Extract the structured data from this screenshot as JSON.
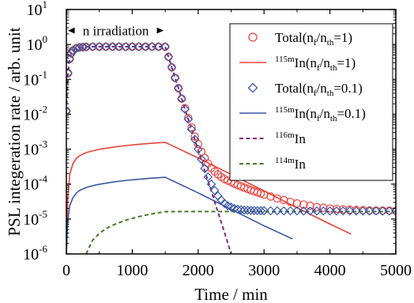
{
  "chart_data": {
    "type": "line",
    "xlabel": "Time / min",
    "ylabel": "PSL integeration rate / arb. unit",
    "xlim": [
      0,
      5000
    ],
    "ylim": [
      1e-06,
      10
    ],
    "yscale": "log",
    "grid": false,
    "legend_position": "top-right",
    "x_ticks": [
      {
        "value": 0,
        "label": "0"
      },
      {
        "value": 1000,
        "label": "1000"
      },
      {
        "value": 2000,
        "label": "2000"
      },
      {
        "value": 3000,
        "label": "3000"
      },
      {
        "value": 4000,
        "label": "4000"
      },
      {
        "value": 5000,
        "label": "5000"
      }
    ],
    "y_ticks": [
      {
        "value": 1e-06,
        "base": "10",
        "exp": "-6"
      },
      {
        "value": 1e-05,
        "base": "10",
        "exp": "-5"
      },
      {
        "value": 0.0001,
        "base": "10",
        "exp": "-4"
      },
      {
        "value": 0.001,
        "base": "10",
        "exp": "-3"
      },
      {
        "value": 0.01,
        "base": "10",
        "exp": "-2"
      },
      {
        "value": 0.1,
        "base": "10",
        "exp": "-1"
      },
      {
        "value": 1,
        "base": "10",
        "exp": "0"
      },
      {
        "value": 10,
        "base": "10",
        "exp": "1"
      }
    ],
    "annotation": {
      "text": "n irradiation",
      "x_start": 0,
      "x_end": 1500,
      "y": 2.5
    },
    "series": [
      {
        "name": "Total(n_f/n_th=1)",
        "legend": {
          "pre_sup": "",
          "main": "Total(n",
          "sub1": "f",
          "mid": "/n",
          "sub2": "th",
          "tail": "=1)"
        },
        "style": "marker-circle",
        "color": "#e8413a",
        "x": [
          0,
          25,
          50,
          75,
          100,
          150,
          200,
          250,
          300,
          400,
          500,
          600,
          700,
          800,
          900,
          1000,
          1100,
          1200,
          1300,
          1400,
          1500,
          1550,
          1600,
          1650,
          1700,
          1750,
          1800,
          1850,
          1900,
          1950,
          2000,
          2050,
          2100,
          2150,
          2200,
          2250,
          2300,
          2350,
          2400,
          2450,
          2500,
          2550,
          2600,
          2650,
          2700,
          2750,
          2800,
          2850,
          2900,
          2950,
          3000,
          3100,
          3200,
          3300,
          3400,
          3500,
          3600,
          3700,
          3800,
          3900,
          4000,
          4100,
          4200,
          4300,
          4400,
          4500,
          4600,
          4700,
          4800,
          4900,
          5000
        ],
        "y": [
          0.0125,
          0.15,
          0.38,
          0.56,
          0.67,
          0.78,
          0.82,
          0.84,
          0.85,
          0.86,
          0.86,
          0.86,
          0.86,
          0.86,
          0.86,
          0.86,
          0.86,
          0.86,
          0.86,
          0.86,
          0.86,
          0.44,
          0.22,
          0.11,
          0.056,
          0.028,
          0.015,
          0.0078,
          0.0042,
          0.0023,
          0.0014,
          0.00085,
          0.00056,
          0.00039,
          0.00029,
          0.00023,
          0.00019,
          0.00016,
          0.00014,
          0.000126,
          0.000114,
          0.000103,
          9.4e-05,
          8.6e-05,
          7.9e-05,
          7.3e-05,
          6.7e-05,
          6.2e-05,
          5.8e-05,
          5.4e-05,
          5e-05,
          4.4e-05,
          3.9e-05,
          3.5e-05,
          3.1e-05,
          2.8e-05,
          2.6e-05,
          2.4e-05,
          2.2e-05,
          2.1e-05,
          2e-05,
          1.95e-05,
          1.89e-05,
          1.85e-05,
          1.82e-05,
          1.79e-05,
          1.77e-05,
          1.75e-05,
          1.74e-05,
          1.73e-05,
          1.72e-05
        ]
      },
      {
        "name": "115mIn(n_f/n_th=1)",
        "legend": {
          "pre_sup": "115m",
          "main": "In(n",
          "sub1": "f",
          "mid": "/n",
          "sub2": "th",
          "tail": "=1)"
        },
        "style": "line",
        "color": "#e8413a",
        "x": [
          0,
          20,
          50,
          100,
          150,
          200,
          300,
          400,
          500,
          700,
          900,
          1100,
          1300,
          1500,
          2000,
          2500,
          3000,
          3500,
          4000,
          4320
        ],
        "y": [
          1e-06,
          3.5e-05,
          0.000185,
          0.00039,
          0.00054,
          0.00065,
          0.0008,
          0.0009,
          0.00099,
          0.00114,
          0.00127,
          0.00138,
          0.00148,
          0.00157,
          0.00056,
          0.00019,
          6.4e-05,
          2.1e-05,
          7.2e-06,
          3.7e-06
        ]
      },
      {
        "name": "Total(n_f/n_th=0.1)",
        "legend": {
          "pre_sup": "",
          "main": "Total(n",
          "sub1": "f",
          "mid": "/n",
          "sub2": "th",
          "tail": "=0.1)"
        },
        "style": "marker-diamond",
        "color": "#3a55a4",
        "x": [
          0,
          25,
          50,
          75,
          100,
          150,
          200,
          250,
          300,
          400,
          500,
          600,
          700,
          800,
          900,
          1000,
          1100,
          1200,
          1300,
          1400,
          1500,
          1550,
          1600,
          1650,
          1700,
          1750,
          1800,
          1850,
          1900,
          1950,
          2000,
          2050,
          2100,
          2150,
          2200,
          2250,
          2300,
          2350,
          2400,
          2450,
          2500,
          2550,
          2600,
          2650,
          2700,
          2750,
          2800,
          2850,
          2900,
          2950,
          3000,
          3100,
          3200,
          3300,
          3400,
          3500,
          3600,
          3700,
          3800,
          3900,
          4000,
          4100,
          4200,
          4300,
          4400,
          4500,
          4600,
          4700,
          4800,
          4900,
          5000
        ],
        "y": [
          0.0125,
          0.15,
          0.38,
          0.56,
          0.67,
          0.78,
          0.82,
          0.84,
          0.85,
          0.86,
          0.86,
          0.86,
          0.86,
          0.86,
          0.86,
          0.86,
          0.86,
          0.86,
          0.86,
          0.86,
          0.86,
          0.44,
          0.22,
          0.11,
          0.056,
          0.028,
          0.014,
          0.0072,
          0.0037,
          0.0019,
          0.001,
          0.00052,
          0.00028,
          0.00016,
          0.0001,
          6.6e-05,
          4.6e-05,
          3.5e-05,
          2.8e-05,
          2.4e-05,
          2.2e-05,
          2e-05,
          1.9e-05,
          1.85e-05,
          1.8e-05,
          1.78e-05,
          1.76e-05,
          1.75e-05,
          1.74e-05,
          1.73e-05,
          1.73e-05,
          1.72e-05,
          1.72e-05,
          1.71e-05,
          1.71e-05,
          1.71e-05,
          1.7e-05,
          1.7e-05,
          1.7e-05,
          1.7e-05,
          1.7e-05,
          1.7e-05,
          1.7e-05,
          1.7e-05,
          1.7e-05,
          1.7e-05,
          1.7e-05,
          1.7e-05,
          1.7e-05,
          1.7e-05,
          1.7e-05
        ]
      },
      {
        "name": "115mIn(n_f/n_th=0.1)",
        "legend": {
          "pre_sup": "115m",
          "main": "In(n",
          "sub1": "f",
          "mid": "/n",
          "sub2": "th",
          "tail": "=0.1)"
        },
        "style": "line",
        "color": "#3a55a4",
        "x": [
          0,
          20,
          50,
          100,
          150,
          200,
          300,
          400,
          500,
          700,
          900,
          1100,
          1300,
          1500,
          2000,
          2500,
          3000,
          3430
        ],
        "y": [
          1e-06,
          8.2e-06,
          2.4e-05,
          4.1e-05,
          5.5e-05,
          6.6e-05,
          8e-05,
          9e-05,
          9.9e-05,
          0.000114,
          0.000127,
          0.000138,
          0.000148,
          0.000157,
          5.6e-05,
          1.9e-05,
          6.4e-06,
          2.7e-06
        ]
      },
      {
        "name": "116mIn",
        "legend": {
          "pre_sup": "116m",
          "main": "In",
          "sub1": "",
          "mid": "",
          "sub2": "",
          "tail": ""
        },
        "style": "dash",
        "color": "#7b2a78",
        "x": [
          0,
          25,
          50,
          75,
          100,
          150,
          200,
          300,
          400,
          500,
          700,
          900,
          1100,
          1300,
          1500,
          1600,
          1700,
          1800,
          1900,
          2000,
          2100,
          2200,
          2300,
          2400,
          2500
        ],
        "y": [
          0.0125,
          0.15,
          0.38,
          0.56,
          0.67,
          0.78,
          0.82,
          0.85,
          0.86,
          0.86,
          0.86,
          0.86,
          0.86,
          0.86,
          0.86,
          0.22,
          0.056,
          0.014,
          0.0037,
          0.00095,
          0.00024,
          6.2e-05,
          1.6e-05,
          4.1e-06,
          1e-06
        ]
      },
      {
        "name": "114mIn",
        "legend": {
          "pre_sup": "114m",
          "main": "In",
          "sub1": "",
          "mid": "",
          "sub2": "",
          "tail": ""
        },
        "style": "dash",
        "color": "#4a7a2c",
        "x": [
          300,
          400,
          500,
          600,
          700,
          800,
          900,
          1000,
          1100,
          1200,
          1300,
          1400,
          1500,
          2000,
          2500,
          3000,
          3500,
          4000,
          4500,
          5000
        ],
        "y": [
          1e-06,
          2.5e-06,
          3.9e-06,
          5.3e-06,
          6.6e-06,
          7.9e-06,
          9.2e-06,
          1.04e-05,
          1.17e-05,
          1.29e-05,
          1.4e-05,
          1.51e-05,
          1.63e-05,
          1.64e-05,
          1.64e-05,
          1.64e-05,
          1.64e-05,
          1.64e-05,
          1.64e-05,
          1.64e-05
        ]
      }
    ]
  }
}
